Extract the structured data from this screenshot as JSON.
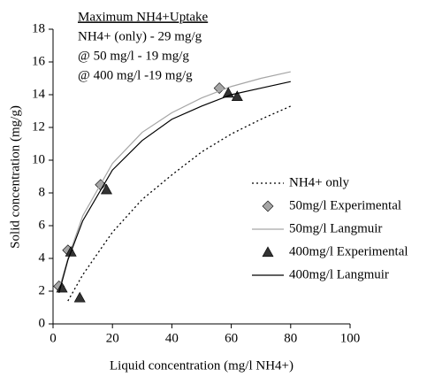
{
  "chart_data": {
    "type": "scatter",
    "x_label": "Liquid concentration (mg/l NH4+)",
    "y_label": "Solid concentration (mg/g)",
    "annotations": [
      "Maximum NH4+Uptake",
      "NH4+ (only) -  29 mg/g",
      "@ 50 mg/l  - 19 mg/g",
      "@ 400 mg/l -19 mg/g"
    ],
    "xlim": [
      0,
      100
    ],
    "xticks": [
      0,
      20,
      40,
      60,
      80,
      100
    ],
    "ylim": [
      0,
      18
    ],
    "yticks": [
      0,
      2,
      4,
      6,
      8,
      10,
      12,
      14,
      16,
      18
    ],
    "legend": "right",
    "series": [
      {
        "name": "NH4+ only",
        "mode": "line",
        "dash": "dotted",
        "color": "#000000",
        "x": [
          5,
          10,
          20,
          30,
          40,
          50,
          60,
          70,
          80
        ],
        "values": [
          1.4,
          3.0,
          5.6,
          7.6,
          9.1,
          10.5,
          11.6,
          12.5,
          13.3
        ]
      },
      {
        "name": "50mg/l Experimental",
        "mode": "markers",
        "marker": "diamond",
        "color": "#a6a6a6",
        "x": [
          2,
          5,
          16,
          56
        ],
        "values": [
          2.3,
          4.5,
          8.5,
          14.4
        ]
      },
      {
        "name": "50mg/l Langmuir",
        "mode": "line",
        "dash": "solid",
        "color": "#a6a6a6",
        "x": [
          2,
          5,
          10,
          20,
          30,
          40,
          50,
          60,
          70,
          80
        ],
        "values": [
          2.1,
          4.0,
          6.6,
          9.8,
          11.7,
          12.9,
          13.8,
          14.5,
          15.0,
          15.4
        ]
      },
      {
        "name": "400mg/l Experimental",
        "mode": "markers",
        "marker": "triangle",
        "color": "#333333",
        "x": [
          3,
          6,
          9,
          18,
          59,
          62
        ],
        "values": [
          2.2,
          4.4,
          1.6,
          8.2,
          14.1,
          13.9
        ]
      },
      {
        "name": "400mg/l Langmuir",
        "mode": "line",
        "dash": "solid",
        "color": "#000000",
        "x": [
          2,
          5,
          10,
          20,
          30,
          40,
          50,
          60,
          70,
          80
        ],
        "values": [
          1.9,
          3.9,
          6.3,
          9.4,
          11.2,
          12.5,
          13.3,
          14.0,
          14.4,
          14.8
        ]
      }
    ]
  }
}
